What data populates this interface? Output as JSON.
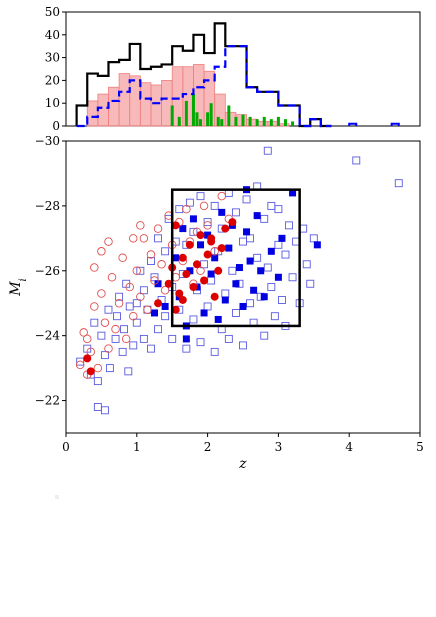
{
  "chart_data": [
    {
      "type": "histogram",
      "title": "",
      "xlabel": "",
      "ylabel": "",
      "xlim": [
        0,
        5
      ],
      "ylim": [
        0,
        50
      ],
      "yticks": [
        0,
        10,
        20,
        30,
        40,
        50
      ],
      "bin_edges": [
        0.15,
        0.3,
        0.45,
        0.6,
        0.75,
        0.9,
        1.05,
        1.2,
        1.35,
        1.5,
        1.65,
        1.8,
        1.95,
        2.1,
        2.25,
        2.4,
        2.55,
        2.7,
        2.85,
        3.0,
        3.15,
        3.3,
        3.45,
        3.6,
        3.75
      ],
      "series": [
        {
          "color": "#000000",
          "style": "step-solid",
          "counts": [
            9,
            23,
            22,
            28,
            29,
            36,
            25,
            26,
            27,
            35,
            33,
            40,
            32,
            45,
            35,
            35,
            17,
            15,
            15,
            9,
            9,
            0,
            3,
            0
          ]
        },
        {
          "color": "#f08080",
          "style": "step-filled",
          "counts": [
            0,
            11,
            14,
            17,
            23,
            22,
            19,
            18,
            20,
            26,
            26,
            27,
            24,
            14,
            6,
            5,
            3,
            2,
            2,
            1,
            0,
            0,
            0,
            0
          ]
        },
        {
          "color": "#0000ff",
          "style": "step-dashed",
          "counts": [
            0,
            4,
            8,
            11,
            15,
            20,
            12,
            10,
            12,
            12,
            14,
            17,
            20,
            26,
            35,
            35,
            17,
            15,
            15,
            9,
            9,
            0,
            3,
            0
          ]
        },
        {
          "color": "#00aa00",
          "style": "bar",
          "x": [
            1.5,
            1.6,
            1.7,
            1.8,
            1.85,
            1.9,
            2.0,
            2.05,
            2.15,
            2.2,
            2.3,
            2.4,
            2.5,
            2.6,
            2.7,
            2.8,
            2.9,
            3.0,
            3.1,
            3.2
          ],
          "values": [
            9,
            4,
            11,
            14,
            6,
            3,
            6,
            10,
            4,
            3,
            9,
            4,
            5,
            4,
            3,
            4,
            3,
            4,
            3,
            2
          ]
        }
      ],
      "outlier_series": [
        {
          "color": "#000000",
          "x": [
            4.0,
            4.1
          ],
          "values": [
            1,
            1
          ]
        },
        {
          "color": "#000000",
          "x": [
            4.6,
            4.7
          ],
          "values": [
            1,
            1
          ]
        }
      ]
    },
    {
      "type": "scatter",
      "title": "",
      "xlabel": "z",
      "ylabel": "M_i",
      "xlim": [
        0,
        5
      ],
      "ylim": [
        -21,
        -30
      ],
      "xticks": [
        0,
        1,
        2,
        3,
        4,
        5
      ],
      "yticks": [
        -22,
        -24,
        -26,
        -28,
        -30
      ],
      "xtick_labels": [
        "0",
        "1",
        "2",
        "3",
        "4",
        "5"
      ],
      "ytick_labels": [
        "−22",
        "−24",
        "−26",
        "−28",
        "−30"
      ],
      "box": {
        "x": [
          1.5,
          3.3
        ],
        "y": [
          -24.3,
          -28.5
        ]
      },
      "series": [
        {
          "marker": "open-square",
          "color": "#5a5ae0",
          "points": [
            [
              0.2,
              -23.2
            ],
            [
              0.3,
              -23.6
            ],
            [
              0.35,
              -22.8
            ],
            [
              0.4,
              -24.4
            ],
            [
              0.45,
              -22.6
            ],
            [
              0.5,
              -24.0
            ],
            [
              0.55,
              -23.4
            ],
            [
              0.6,
              -24.8
            ],
            [
              0.62,
              -23.0
            ],
            [
              0.7,
              -23.9
            ],
            [
              0.72,
              -24.6
            ],
            [
              0.75,
              -25.2
            ],
            [
              0.8,
              -23.5
            ],
            [
              0.82,
              -24.2
            ],
            [
              0.85,
              -25.6
            ],
            [
              0.88,
              -22.9
            ],
            [
              0.9,
              -24.9
            ],
            [
              0.95,
              -23.7
            ],
            [
              1.0,
              -25.0
            ],
            [
              1.0,
              -24.4
            ],
            [
              1.05,
              -26.0
            ],
            [
              1.1,
              -23.9
            ],
            [
              1.1,
              -25.4
            ],
            [
              1.15,
              -24.8
            ],
            [
              1.2,
              -26.3
            ],
            [
              1.2,
              -23.6
            ],
            [
              1.25,
              -25.8
            ],
            [
              1.3,
              -24.2
            ],
            [
              1.3,
              -27.0
            ],
            [
              1.35,
              -25.1
            ],
            [
              1.4,
              -26.6
            ],
            [
              1.4,
              -24.6
            ],
            [
              1.45,
              -27.6
            ],
            [
              1.5,
              -25.5
            ],
            [
              1.5,
              -23.9
            ],
            [
              1.55,
              -26.9
            ],
            [
              1.6,
              -24.8
            ],
            [
              1.6,
              -27.9
            ],
            [
              1.65,
              -25.9
            ],
            [
              1.7,
              -23.6
            ],
            [
              1.7,
              -26.8
            ],
            [
              1.75,
              -28.1
            ],
            [
              1.8,
              -24.5
            ],
            [
              1.8,
              -27.2
            ],
            [
              1.85,
              -25.4
            ],
            [
              1.9,
              -23.8
            ],
            [
              1.9,
              -28.3
            ],
            [
              1.95,
              -26.2
            ],
            [
              2.0,
              -24.9
            ],
            [
              2.0,
              -27.5
            ],
            [
              2.05,
              -25.7
            ],
            [
              2.1,
              -23.5
            ],
            [
              2.1,
              -28.0
            ],
            [
              2.15,
              -26.6
            ],
            [
              2.2,
              -24.2
            ],
            [
              2.2,
              -27.3
            ],
            [
              2.25,
              -25.3
            ],
            [
              2.3,
              -28.4
            ],
            [
              2.3,
              -23.9
            ],
            [
              2.35,
              -26.0
            ],
            [
              2.4,
              -27.8
            ],
            [
              2.4,
              -24.7
            ],
            [
              2.45,
              -25.6
            ],
            [
              2.5,
              -26.9
            ],
            [
              2.5,
              -23.7
            ],
            [
              2.55,
              -28.2
            ],
            [
              2.6,
              -25.0
            ],
            [
              2.6,
              -27.0
            ],
            [
              2.65,
              -24.4
            ],
            [
              2.7,
              -26.4
            ],
            [
              2.7,
              -28.6
            ],
            [
              2.75,
              -25.2
            ],
            [
              2.8,
              -27.6
            ],
            [
              2.8,
              -24.0
            ],
            [
              2.85,
              -26.1
            ],
            [
              2.9,
              -25.5
            ],
            [
              2.9,
              -28.0
            ],
            [
              2.95,
              -24.6
            ],
            [
              3.0,
              -26.8
            ],
            [
              3.0,
              -27.9
            ],
            [
              3.05,
              -25.1
            ],
            [
              3.1,
              -26.5
            ],
            [
              3.1,
              -24.3
            ],
            [
              3.15,
              -27.4
            ],
            [
              3.2,
              -25.8
            ],
            [
              3.25,
              -26.9
            ],
            [
              3.3,
              -25.0
            ],
            [
              3.35,
              -27.3
            ],
            [
              3.4,
              -26.2
            ],
            [
              3.45,
              -25.6
            ],
            [
              2.85,
              -29.7
            ],
            [
              4.1,
              -29.4
            ],
            [
              4.7,
              -28.7
            ],
            [
              0.45,
              -21.8
            ],
            [
              0.55,
              -21.7
            ],
            [
              3.5,
              -27.0
            ]
          ]
        },
        {
          "marker": "filled-square",
          "color": "#0000e0",
          "points": [
            [
              1.4,
              -24.9
            ],
            [
              1.55,
              -26.4
            ],
            [
              1.6,
              -25.2
            ],
            [
              1.65,
              -27.3
            ],
            [
              1.7,
              -24.3
            ],
            [
              1.75,
              -26.0
            ],
            [
              1.8,
              -27.6
            ],
            [
              1.85,
              -25.5
            ],
            [
              1.9,
              -26.8
            ],
            [
              1.95,
              -24.7
            ],
            [
              2.0,
              -27.1
            ],
            [
              2.05,
              -25.9
            ],
            [
              2.1,
              -26.4
            ],
            [
              2.15,
              -24.5
            ],
            [
              2.2,
              -27.8
            ],
            [
              2.25,
              -25.1
            ],
            [
              2.3,
              -26.7
            ],
            [
              2.35,
              -27.4
            ],
            [
              2.4,
              -25.6
            ],
            [
              2.45,
              -26.1
            ],
            [
              2.5,
              -24.9
            ],
            [
              2.55,
              -27.2
            ],
            [
              2.6,
              -26.3
            ],
            [
              2.65,
              -25.4
            ],
            [
              2.7,
              -27.7
            ],
            [
              2.75,
              -26.0
            ],
            [
              2.8,
              -25.2
            ],
            [
              2.9,
              -26.6
            ],
            [
              3.0,
              -25.8
            ],
            [
              3.05,
              -27.0
            ],
            [
              3.2,
              -28.4
            ],
            [
              3.55,
              -26.8
            ],
            [
              1.25,
              -24.7
            ],
            [
              1.3,
              -25.6
            ],
            [
              1.7,
              -23.9
            ],
            [
              2.55,
              -28.5
            ]
          ]
        },
        {
          "marker": "open-circle",
          "color": "#e05050",
          "points": [
            [
              0.25,
              -24.1
            ],
            [
              0.3,
              -22.8
            ],
            [
              0.35,
              -23.5
            ],
            [
              0.4,
              -24.9
            ],
            [
              0.4,
              -26.1
            ],
            [
              0.45,
              -23.0
            ],
            [
              0.5,
              -25.3
            ],
            [
              0.55,
              -24.4
            ],
            [
              0.6,
              -23.6
            ],
            [
              0.65,
              -25.8
            ],
            [
              0.7,
              -24.2
            ],
            [
              0.75,
              -25.0
            ],
            [
              0.8,
              -26.4
            ],
            [
              0.85,
              -23.9
            ],
            [
              0.9,
              -25.5
            ],
            [
              0.95,
              -24.6
            ],
            [
              1.0,
              -26.0
            ],
            [
              1.05,
              -25.2
            ],
            [
              1.1,
              -27.0
            ],
            [
              1.15,
              -24.8
            ],
            [
              1.2,
              -26.5
            ],
            [
              1.25,
              -25.7
            ],
            [
              1.3,
              -27.3
            ],
            [
              1.35,
              -26.2
            ],
            [
              1.4,
              -25.4
            ],
            [
              1.45,
              -27.7
            ],
            [
              1.5,
              -26.8
            ],
            [
              1.55,
              -25.8
            ],
            [
              1.6,
              -27.5
            ],
            [
              1.65,
              -26.3
            ],
            [
              1.7,
              -27.9
            ],
            [
              1.75,
              -26.9
            ],
            [
              1.8,
              -25.6
            ],
            [
              1.85,
              -27.2
            ],
            [
              1.9,
              -26.0
            ],
            [
              1.95,
              -28.0
            ],
            [
              2.0,
              -27.4
            ],
            [
              2.1,
              -26.6
            ],
            [
              2.2,
              -28.3
            ],
            [
              2.3,
              -27.6
            ],
            [
              0.95,
              -27.0
            ],
            [
              1.05,
              -27.4
            ],
            [
              0.6,
              -26.9
            ],
            [
              0.3,
              -23.9
            ],
            [
              0.2,
              -23.1
            ],
            [
              0.5,
              -26.6
            ]
          ]
        },
        {
          "marker": "filled-circle",
          "color": "#dd0000",
          "points": [
            [
              0.3,
              -23.3
            ],
            [
              0.35,
              -22.9
            ],
            [
              1.3,
              -25.0
            ],
            [
              1.45,
              -25.6
            ],
            [
              1.5,
              -26.1
            ],
            [
              1.55,
              -24.8
            ],
            [
              1.6,
              -25.3
            ],
            [
              1.65,
              -26.4
            ],
            [
              1.7,
              -25.9
            ],
            [
              1.75,
              -26.8
            ],
            [
              1.8,
              -25.5
            ],
            [
              1.85,
              -26.2
            ],
            [
              1.9,
              -27.1
            ],
            [
              1.95,
              -25.7
            ],
            [
              2.0,
              -26.5
            ],
            [
              2.05,
              -26.9
            ],
            [
              2.1,
              -25.2
            ],
            [
              2.15,
              -26.0
            ],
            [
              2.2,
              -26.7
            ],
            [
              2.25,
              -27.3
            ],
            [
              2.35,
              -27.5
            ],
            [
              1.65,
              -25.1
            ],
            [
              1.55,
              -27.4
            ],
            [
              2.05,
              -27.0
            ]
          ]
        }
      ]
    }
  ]
}
